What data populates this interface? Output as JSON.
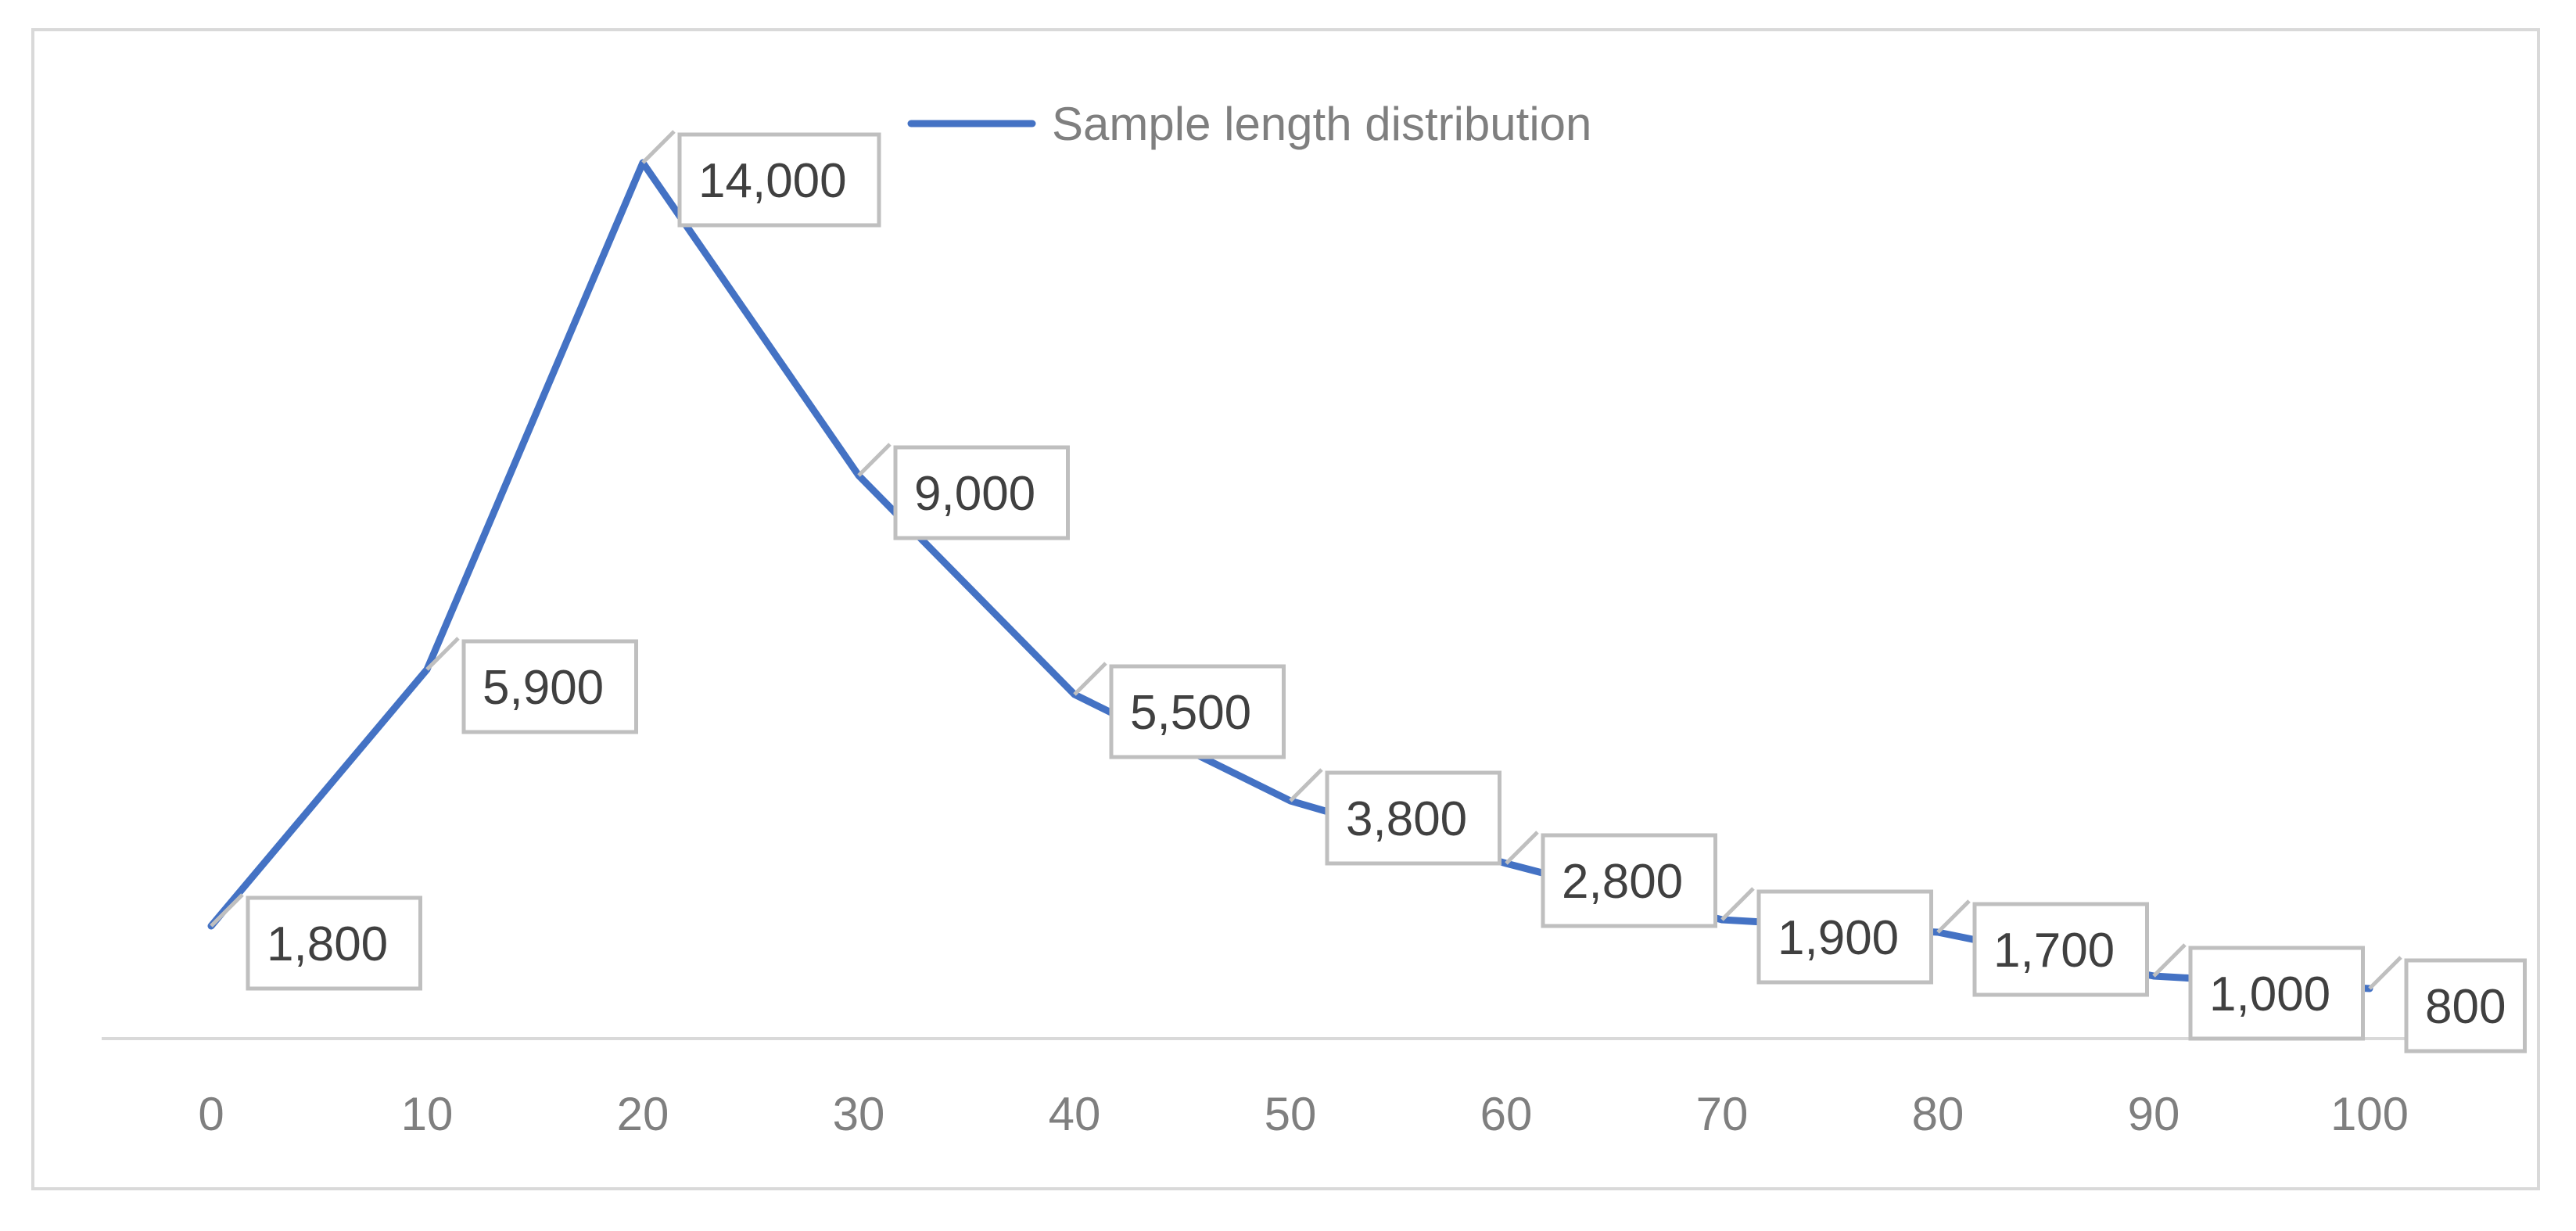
{
  "chart_data": {
    "type": "line",
    "title": "",
    "xlabel": "",
    "ylabel": "",
    "x": [
      0,
      10,
      20,
      30,
      40,
      50,
      60,
      70,
      80,
      90,
      100
    ],
    "x_tick_labels": [
      "0",
      "10",
      "20",
      "30",
      "40",
      "50",
      "60",
      "70",
      "80",
      "90",
      "100"
    ],
    "series": [
      {
        "name": "Sample length distribution",
        "color": "#4472c4",
        "values": [
          1800,
          5900,
          14000,
          9000,
          5500,
          3800,
          2800,
          1900,
          1700,
          1000,
          800
        ],
        "data_labels": [
          "1,800",
          "5,900",
          "14,000",
          "9,000",
          "5,500",
          "3,800",
          "2,800",
          "1,900",
          "1,700",
          "1,000",
          "800"
        ]
      }
    ],
    "xlim": [
      0,
      100
    ],
    "ylim": [
      0,
      15000
    ],
    "y_axis_visible": false,
    "grid": false,
    "legend": "top",
    "axis_color": "#d9d9d9"
  }
}
